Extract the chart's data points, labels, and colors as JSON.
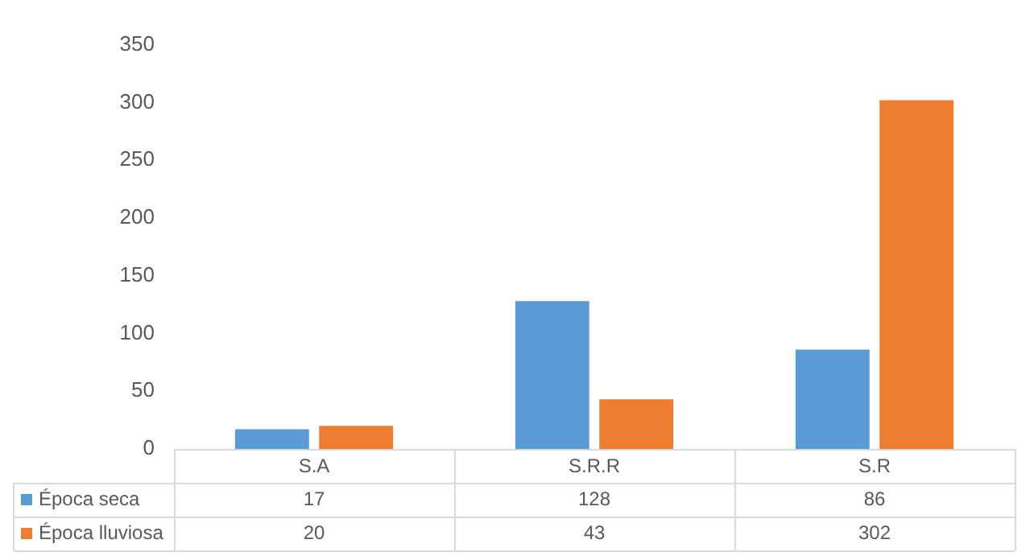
{
  "chart_data": {
    "type": "bar",
    "categories": [
      "S.A",
      "S.R.R",
      "S.R"
    ],
    "series": [
      {
        "name": "Época seca",
        "color": "#5b9bd5",
        "values": [
          17,
          128,
          86
        ]
      },
      {
        "name": "Época lluviosa",
        "color": "#ed7d31",
        "values": [
          20,
          43,
          302
        ]
      }
    ],
    "ylim": [
      0,
      350
    ],
    "yticks": [
      0,
      50,
      100,
      150,
      200,
      250,
      300,
      350
    ],
    "grid": false,
    "legend": "bottom",
    "data_labels": true
  }
}
